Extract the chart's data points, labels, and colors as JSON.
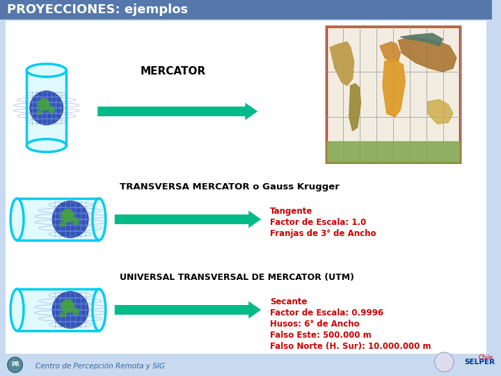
{
  "title": "PROYECCIONES: ejemplos",
  "title_bg": "#5577aa",
  "title_color": "white",
  "title_fontsize": 13,
  "bg_color": "#c8daf0",
  "main_bg": "white",
  "section1_label": "MERCATOR",
  "section2_label": "TRANSVERSA MERCATOR o Gauss Krugger",
  "section3_label": "UNIVERSAL TRANSVERSAL DE MERCATOR (UTM)",
  "section2_bullets": [
    "Tangente",
    "Factor de Escala: 1.0",
    "Franjas de 3° de Ancho"
  ],
  "section3_bullets": [
    "Secante",
    "Factor de Escala: 0.9996",
    "Husos: 6° de Ancho",
    "Falso Este: 500.000 m",
    "Falso Norte (H. Sur): 10.000.000 m"
  ],
  "bullet_color": "#cc0000",
  "arrow_color": "#00bb88",
  "footer_text": "Centro de Percepción Remota y SIG",
  "label_fontsize": 9.5,
  "bullet_fontsize": 8.5,
  "cyl_outer": "#00ccee",
  "cyl_inner": "#e0faff",
  "globe_blue": "#3355bb",
  "globe_green": "#44aa33"
}
